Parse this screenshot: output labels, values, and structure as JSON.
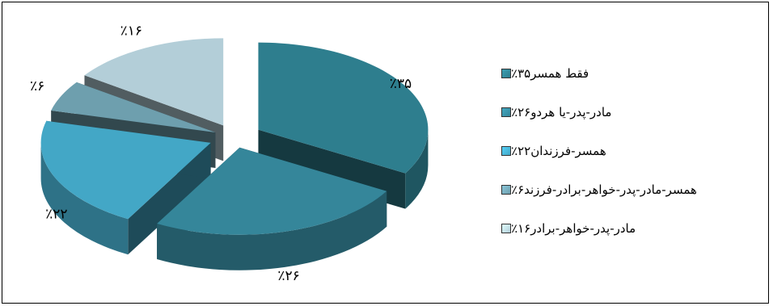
{
  "chart_data": {
    "type": "pie",
    "style": "3d-exploded",
    "slices": [
      {
        "label": "فقط همسر۳۵٪",
        "value": 35,
        "data_label": "٪۳۵",
        "color": "#2E7E8E"
      },
      {
        "label": "مادر-پدر-یا هردو۲۶٪",
        "value": 26,
        "data_label": "٪۲۶",
        "color": "#35869A"
      },
      {
        "label": "همسر-فرزندان۲۲٪",
        "value": 22,
        "data_label": "٪۲۲",
        "color": "#43A7C6"
      },
      {
        "label": "همسر-مادر-پدر-خواهر-برادر-فرزند۶٪",
        "value": 6,
        "data_label": "٪۶",
        "color": "#6E9FAE"
      },
      {
        "label": "مادر-پدر-خواهر-برادر۱۶٪",
        "value": 16,
        "data_label": "٪۱۶",
        "color": "#B3CED8"
      }
    ],
    "legend_position": "right"
  }
}
